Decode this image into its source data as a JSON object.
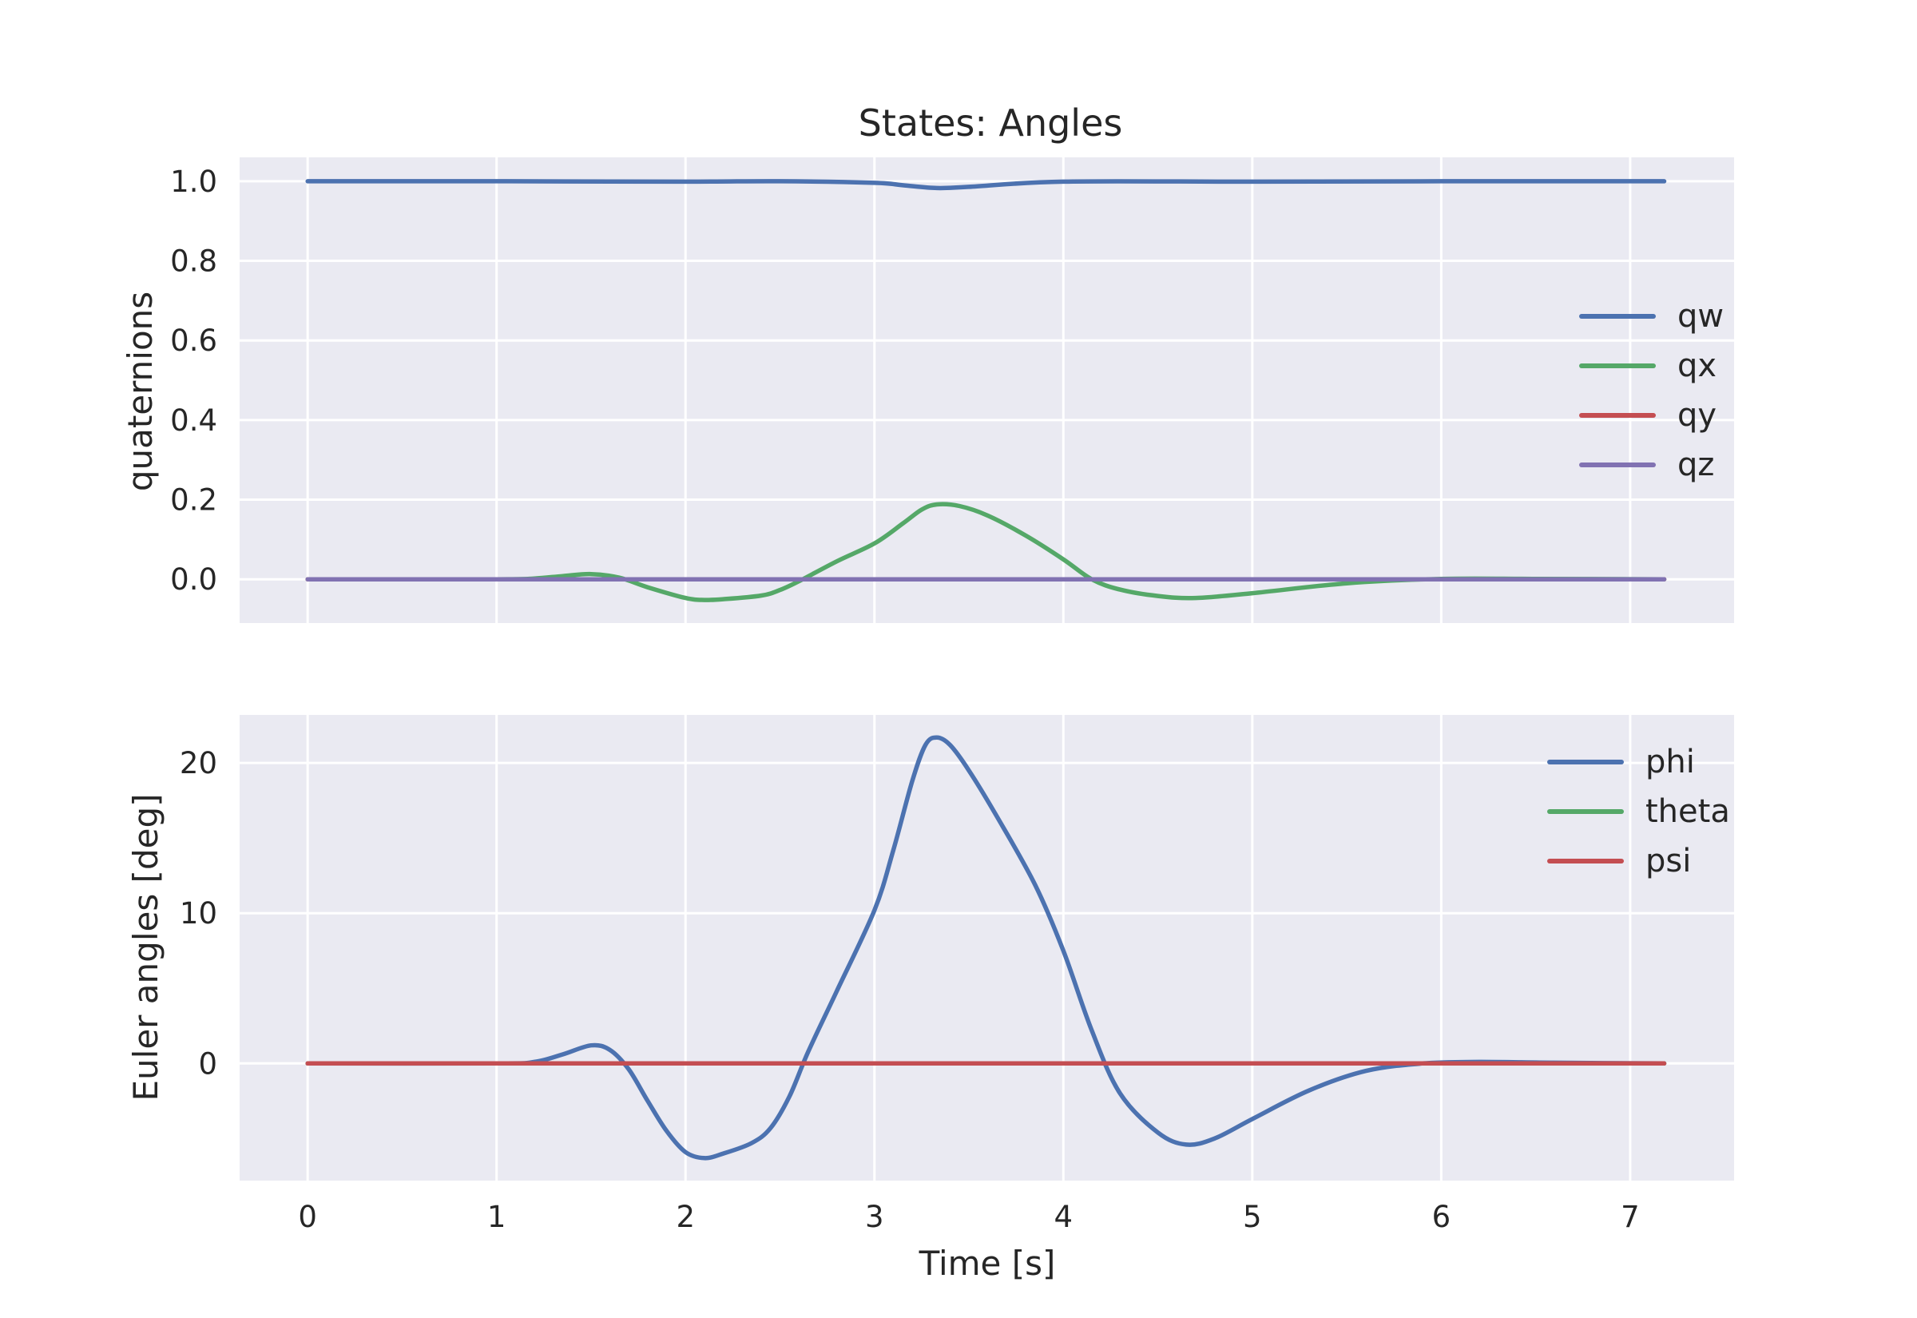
{
  "figure": {
    "title": "States: Angles"
  },
  "chart_data": [
    {
      "type": "line",
      "title": "States: Angles",
      "xlabel": "",
      "ylabel": "quaternions",
      "xlim": [
        -0.36,
        7.55
      ],
      "ylim": [
        -0.11,
        1.06
      ],
      "xticks": [
        0,
        1,
        2,
        3,
        4,
        5,
        6,
        7
      ],
      "yticks": [
        0.0,
        0.2,
        0.4,
        0.6,
        0.8,
        1.0
      ],
      "ytick_labels": [
        "0.0",
        "0.2",
        "0.4",
        "0.6",
        "0.8",
        "1.0"
      ],
      "grid": true,
      "legend": "center-right",
      "series": [
        {
          "name": "qw",
          "color": "#4c72b0",
          "x": [
            0,
            1,
            2,
            2.5,
            3,
            3.15,
            3.33,
            3.5,
            4,
            5,
            6,
            7.18
          ],
          "y": [
            1.0,
            1.0,
            0.999,
            1.0,
            0.996,
            0.99,
            0.983,
            0.986,
            0.999,
            0.999,
            1.0,
            1.0
          ]
        },
        {
          "name": "qx",
          "color": "#55a868",
          "x": [
            0,
            1,
            1.2,
            1.35,
            1.5,
            1.65,
            1.8,
            2.0,
            2.1,
            2.2,
            2.4,
            2.5,
            2.6,
            2.8,
            3.0,
            3.15,
            3.25,
            3.33,
            3.45,
            3.6,
            3.8,
            4.0,
            4.15,
            4.3,
            4.5,
            4.7,
            5.0,
            5.5,
            6.0,
            6.5,
            7.18
          ],
          "y": [
            0,
            0,
            0.002,
            0.008,
            0.013,
            0.004,
            -0.02,
            -0.047,
            -0.052,
            -0.05,
            -0.041,
            -0.027,
            -0.005,
            0.045,
            0.09,
            0.14,
            0.175,
            0.188,
            0.184,
            0.16,
            0.11,
            0.05,
            0.0,
            -0.026,
            -0.042,
            -0.047,
            -0.035,
            -0.01,
            0.001,
            0.001,
            0.0
          ]
        },
        {
          "name": "qy",
          "color": "#c44e52",
          "x": [
            0,
            7.18
          ],
          "y": [
            0,
            0
          ]
        },
        {
          "name": "qz",
          "color": "#8172b2",
          "x": [
            0,
            7.18
          ],
          "y": [
            0,
            0
          ]
        }
      ]
    },
    {
      "type": "line",
      "xlabel": "Time [s]",
      "ylabel": "Euler angles [deg]",
      "xlim": [
        -0.36,
        7.55
      ],
      "ylim": [
        -7.8,
        23.2
      ],
      "xticks": [
        0,
        1,
        2,
        3,
        4,
        5,
        6,
        7
      ],
      "yticks": [
        0,
        10,
        20
      ],
      "ytick_labels": [
        "0",
        "10",
        "20"
      ],
      "grid": true,
      "legend": "top-right",
      "series": [
        {
          "name": "phi",
          "color": "#4c72b0",
          "x": [
            0,
            1,
            1.2,
            1.35,
            1.5,
            1.6,
            1.7,
            1.8,
            1.9,
            2.0,
            2.1,
            2.2,
            2.35,
            2.45,
            2.55,
            2.65,
            2.8,
            3.0,
            3.1,
            3.2,
            3.27,
            3.33,
            3.4,
            3.5,
            3.65,
            3.85,
            4.0,
            4.15,
            4.3,
            4.5,
            4.65,
            4.8,
            5.0,
            5.3,
            5.6,
            5.9,
            6.2,
            6.6,
            7.18
          ],
          "y": [
            0,
            0,
            0.1,
            0.6,
            1.2,
            0.9,
            -0.4,
            -2.5,
            -4.5,
            -5.9,
            -6.3,
            -6.0,
            -5.3,
            -4.3,
            -2.2,
            0.8,
            4.8,
            10.2,
            14.2,
            18.8,
            21.2,
            21.7,
            21.2,
            19.5,
            16.4,
            11.9,
            7.5,
            2.2,
            -2.0,
            -4.6,
            -5.4,
            -5.0,
            -3.7,
            -1.8,
            -0.5,
            0.0,
            0.1,
            0.05,
            0.0
          ]
        },
        {
          "name": "theta",
          "color": "#55a868",
          "x": [
            0,
            7.18
          ],
          "y": [
            0,
            0
          ]
        },
        {
          "name": "psi",
          "color": "#c44e52",
          "x": [
            0,
            7.18
          ],
          "y": [
            0,
            0
          ]
        }
      ]
    }
  ]
}
